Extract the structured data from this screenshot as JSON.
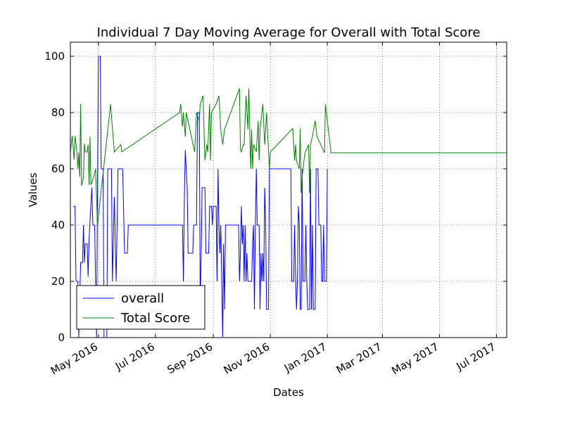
{
  "chart_data": {
    "type": "line",
    "title": "Individual 7 Day Moving Average for Overall with Total Score",
    "xlabel": "Dates",
    "ylabel": "Values",
    "xlim": [
      "2016-04-01",
      "2017-07-12"
    ],
    "ylim": [
      0,
      105
    ],
    "grid": true,
    "legend_position": "lower-left",
    "x_ticks": [
      {
        "date": "2016-05-01",
        "label": "May 2016"
      },
      {
        "date": "2016-07-01",
        "label": "Jul 2016"
      },
      {
        "date": "2016-09-01",
        "label": "Sep 2016"
      },
      {
        "date": "2016-11-01",
        "label": "Nov 2016"
      },
      {
        "date": "2017-01-01",
        "label": "Jan 2017"
      },
      {
        "date": "2017-03-01",
        "label": "Mar 2017"
      },
      {
        "date": "2017-05-01",
        "label": "May 2017"
      },
      {
        "date": "2017-07-01",
        "label": "Jul 2017"
      }
    ],
    "y_ticks": [
      0,
      20,
      40,
      60,
      80,
      100
    ],
    "series": [
      {
        "name": "overall",
        "color": "#0000ff",
        "points": [
          [
            "2016-04-04",
            46.7
          ],
          [
            "2016-04-06",
            46.7
          ],
          [
            "2016-04-07",
            20
          ],
          [
            "2016-04-09",
            20
          ],
          [
            "2016-04-10",
            0
          ],
          [
            "2016-04-12",
            26.7
          ],
          [
            "2016-04-14",
            26.7
          ],
          [
            "2016-04-15",
            40
          ],
          [
            "2016-04-16",
            26.7
          ],
          [
            "2016-04-17",
            33.3
          ],
          [
            "2016-04-19",
            33.3
          ],
          [
            "2016-04-20",
            21.7
          ],
          [
            "2016-04-21",
            35
          ],
          [
            "2016-04-22",
            41.7
          ],
          [
            "2016-04-24",
            53.3
          ],
          [
            "2016-04-25",
            40
          ],
          [
            "2016-04-27",
            40
          ],
          [
            "2016-04-28",
            20
          ],
          [
            "2016-04-29",
            0
          ],
          [
            "2016-05-01",
            100
          ],
          [
            "2016-05-03",
            100
          ],
          [
            "2016-05-04",
            60
          ],
          [
            "2016-05-06",
            60
          ],
          [
            "2016-05-07",
            0
          ],
          [
            "2016-05-10",
            0
          ],
          [
            "2016-05-11",
            60
          ],
          [
            "2016-05-15",
            60
          ],
          [
            "2016-05-16",
            20
          ],
          [
            "2016-05-18",
            50
          ],
          [
            "2016-05-20",
            20
          ],
          [
            "2016-05-22",
            60
          ],
          [
            "2016-05-27",
            60
          ],
          [
            "2016-05-29",
            30
          ],
          [
            "2016-06-01",
            30
          ],
          [
            "2016-06-02",
            40
          ],
          [
            "2016-07-30",
            40
          ],
          [
            "2016-07-31",
            20
          ],
          [
            "2016-08-01",
            50
          ],
          [
            "2016-08-02",
            66.7
          ],
          [
            "2016-08-03",
            60
          ],
          [
            "2016-08-04",
            53.3
          ],
          [
            "2016-08-05",
            30
          ],
          [
            "2016-08-10",
            30
          ],
          [
            "2016-08-11",
            40
          ],
          [
            "2016-08-14",
            40
          ],
          [
            "2016-08-15",
            80
          ],
          [
            "2016-08-17",
            80
          ],
          [
            "2016-08-18",
            10
          ],
          [
            "2016-08-19",
            30
          ],
          [
            "2016-08-20",
            53.3
          ],
          [
            "2016-08-23",
            53.3
          ],
          [
            "2016-08-24",
            30
          ],
          [
            "2016-08-27",
            30
          ],
          [
            "2016-08-28",
            46.7
          ],
          [
            "2016-08-30",
            46.7
          ],
          [
            "2016-08-31",
            40
          ],
          [
            "2016-09-01",
            46.7
          ],
          [
            "2016-09-04",
            46.7
          ],
          [
            "2016-09-05",
            20
          ],
          [
            "2016-09-06",
            60
          ],
          [
            "2016-09-07",
            40
          ],
          [
            "2016-09-08",
            30
          ],
          [
            "2016-09-09",
            40
          ],
          [
            "2016-09-10",
            20
          ],
          [
            "2016-09-11",
            0
          ],
          [
            "2016-09-12",
            33.3
          ],
          [
            "2016-09-13",
            10
          ],
          [
            "2016-09-14",
            40
          ],
          [
            "2016-09-28",
            40
          ],
          [
            "2016-09-29",
            20
          ],
          [
            "2016-09-30",
            30
          ],
          [
            "2016-10-01",
            46.7
          ],
          [
            "2016-10-02",
            33.3
          ],
          [
            "2016-10-03",
            40
          ],
          [
            "2016-10-04",
            20
          ],
          [
            "2016-10-05",
            40
          ],
          [
            "2016-10-06",
            20
          ],
          [
            "2016-10-07",
            30
          ],
          [
            "2016-10-08",
            20
          ],
          [
            "2016-10-12",
            20
          ],
          [
            "2016-10-13",
            33.3
          ],
          [
            "2016-10-14",
            40
          ],
          [
            "2016-10-15",
            10
          ],
          [
            "2016-10-16",
            40
          ],
          [
            "2016-10-17",
            60
          ],
          [
            "2016-10-18",
            40
          ],
          [
            "2016-10-20",
            40
          ],
          [
            "2016-10-21",
            10
          ],
          [
            "2016-10-22",
            30
          ],
          [
            "2016-10-23",
            20
          ],
          [
            "2016-10-24",
            30
          ],
          [
            "2016-10-25",
            20
          ],
          [
            "2016-10-26",
            53.3
          ],
          [
            "2016-10-27",
            40
          ],
          [
            "2016-10-28",
            10
          ],
          [
            "2016-10-30",
            10
          ],
          [
            "2016-10-31",
            60
          ],
          [
            "2016-11-23",
            60
          ],
          [
            "2016-11-24",
            20
          ],
          [
            "2016-11-26",
            20
          ],
          [
            "2016-11-27",
            40
          ],
          [
            "2016-11-28",
            20
          ],
          [
            "2016-11-29",
            10
          ],
          [
            "2016-11-30",
            20
          ],
          [
            "2016-12-01",
            46.7
          ],
          [
            "2016-12-02",
            40
          ],
          [
            "2016-12-03",
            10
          ],
          [
            "2016-12-04",
            10
          ],
          [
            "2016-12-05",
            60
          ],
          [
            "2016-12-06",
            20
          ],
          [
            "2016-12-08",
            20
          ],
          [
            "2016-12-09",
            40
          ],
          [
            "2016-12-10",
            20
          ],
          [
            "2016-12-11",
            10
          ],
          [
            "2016-12-13",
            10
          ],
          [
            "2016-12-14",
            60
          ],
          [
            "2016-12-15",
            10
          ],
          [
            "2016-12-16",
            40
          ],
          [
            "2016-12-17",
            10
          ],
          [
            "2016-12-19",
            10
          ],
          [
            "2016-12-20",
            60
          ],
          [
            "2016-12-22",
            60
          ],
          [
            "2016-12-23",
            40
          ],
          [
            "2016-12-25",
            40
          ],
          [
            "2016-12-26",
            20
          ],
          [
            "2016-12-27",
            20
          ],
          [
            "2016-12-28",
            40
          ],
          [
            "2016-12-29",
            20
          ],
          [
            "2016-12-31",
            20
          ],
          [
            "2017-01-01",
            60
          ]
        ]
      },
      {
        "name": "Total Score",
        "color": "#008000",
        "points": [
          [
            "2016-04-01",
            66
          ],
          [
            "2016-04-03",
            71.7
          ],
          [
            "2016-04-05",
            63.3
          ],
          [
            "2016-04-06",
            71.7
          ],
          [
            "2016-04-08",
            66
          ],
          [
            "2016-04-09",
            60
          ],
          [
            "2016-04-10",
            65.7
          ],
          [
            "2016-04-11",
            57.1
          ],
          [
            "2016-04-12",
            83
          ],
          [
            "2016-04-13",
            54
          ],
          [
            "2016-04-15",
            57
          ],
          [
            "2016-04-16",
            69
          ],
          [
            "2016-04-17",
            66
          ],
          [
            "2016-04-19",
            66
          ],
          [
            "2016-04-20",
            68.6
          ],
          [
            "2016-04-21",
            54.3
          ],
          [
            "2016-04-22",
            71.4
          ],
          [
            "2016-04-23",
            54.3
          ],
          [
            "2016-04-26",
            57.1
          ],
          [
            "2016-04-28",
            60
          ],
          [
            "2016-04-30",
            40
          ],
          [
            "2016-05-14",
            83
          ],
          [
            "2016-05-18",
            66
          ],
          [
            "2016-05-25",
            68.6
          ],
          [
            "2016-05-26",
            66
          ],
          [
            "2016-07-27",
            80
          ],
          [
            "2016-07-28",
            83
          ],
          [
            "2016-07-30",
            75
          ],
          [
            "2016-07-31",
            80
          ],
          [
            "2016-08-02",
            71.4
          ],
          [
            "2016-08-03",
            80
          ],
          [
            "2016-08-12",
            66
          ],
          [
            "2016-08-14",
            80
          ],
          [
            "2016-08-17",
            77
          ],
          [
            "2016-08-18",
            83
          ],
          [
            "2016-08-21",
            86
          ],
          [
            "2016-08-23",
            63
          ],
          [
            "2016-08-25",
            68.6
          ],
          [
            "2016-08-26",
            66
          ],
          [
            "2016-08-28",
            83
          ],
          [
            "2016-08-29",
            63
          ],
          [
            "2016-08-30",
            80
          ],
          [
            "2016-09-04",
            83
          ],
          [
            "2016-09-07",
            86
          ],
          [
            "2016-09-09",
            74
          ],
          [
            "2016-09-11",
            68.6
          ],
          [
            "2016-09-13",
            74
          ],
          [
            "2016-09-29",
            88.6
          ],
          [
            "2016-09-30",
            67
          ],
          [
            "2016-10-01",
            66
          ],
          [
            "2016-10-03",
            68.6
          ],
          [
            "2016-10-04",
            68.6
          ],
          [
            "2016-10-06",
            86
          ],
          [
            "2016-10-08",
            74
          ],
          [
            "2016-10-09",
            88.6
          ],
          [
            "2016-10-11",
            60
          ],
          [
            "2016-10-12",
            74
          ],
          [
            "2016-10-13",
            60
          ],
          [
            "2016-10-14",
            68.6
          ],
          [
            "2016-10-17",
            66
          ],
          [
            "2016-10-19",
            77
          ],
          [
            "2016-10-20",
            63
          ],
          [
            "2016-10-21",
            74
          ],
          [
            "2016-10-24",
            83
          ],
          [
            "2016-10-26",
            68.6
          ],
          [
            "2016-10-28",
            80
          ],
          [
            "2016-10-31",
            60
          ],
          [
            "2016-11-01",
            66
          ],
          [
            "2016-11-25",
            74.3
          ],
          [
            "2016-11-27",
            62.9
          ],
          [
            "2016-11-28",
            68.6
          ],
          [
            "2016-11-29",
            62.9
          ],
          [
            "2016-12-02",
            60
          ],
          [
            "2016-12-03",
            74.3
          ],
          [
            "2016-12-04",
            51.4
          ],
          [
            "2016-12-05",
            57.1
          ],
          [
            "2016-12-08",
            65.7
          ],
          [
            "2016-12-12",
            68.6
          ],
          [
            "2016-12-13",
            51.4
          ],
          [
            "2016-12-14",
            68.6
          ],
          [
            "2016-12-16",
            71.4
          ],
          [
            "2016-12-19",
            77.1
          ],
          [
            "2016-12-21",
            71.4
          ],
          [
            "2016-12-29",
            65.7
          ],
          [
            "2016-12-30",
            82.9
          ],
          [
            "2017-01-01",
            77.1
          ],
          [
            "2017-01-05",
            65.7
          ],
          [
            "2017-07-12",
            65.7
          ]
        ]
      }
    ]
  }
}
